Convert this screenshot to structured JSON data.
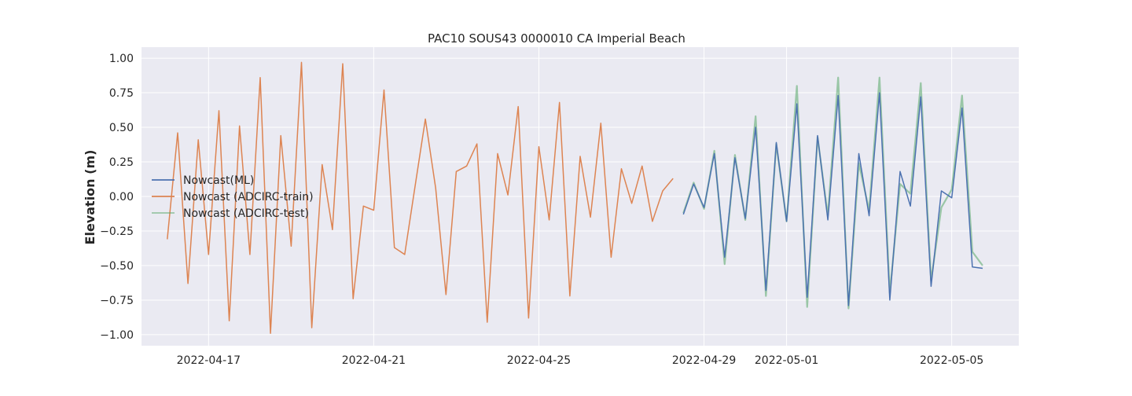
{
  "chart_data": {
    "type": "line",
    "title": "PAC10 SOUS43 0000010 CA Imperial Beach",
    "xlabel": "",
    "ylabel": "Elevation (m)",
    "xlim": [
      "2022-04-15T09:00",
      "2022-05-06T15:00"
    ],
    "ylim": [
      -1.08,
      1.08
    ],
    "x_ticks": [
      "2022-04-17",
      "2022-04-21",
      "2022-04-25",
      "2022-04-29",
      "2022-05-01",
      "2022-05-05"
    ],
    "y_ticks": [
      "1.00",
      "0.75",
      "0.50",
      "0.25",
      "0.00",
      "−0.25",
      "−0.50",
      "−0.75",
      "−1.00"
    ],
    "y_tick_values": [
      1.0,
      0.75,
      0.5,
      0.25,
      0.0,
      -0.25,
      -0.5,
      -0.75,
      -1.0
    ],
    "grid": true,
    "legend_position": "center-left",
    "colors": {
      "background": "#eaeaf2",
      "grid": "#ffffff",
      "ml": "#4c72b0",
      "train": "#dd8452",
      "test": "#55a868"
    },
    "series": [
      {
        "name": "Nowcast (ADCIRC-train)",
        "color": "#dd8452",
        "x": [
          "2022-04-16T00:00",
          "2022-04-16T06:00",
          "2022-04-16T12:00",
          "2022-04-16T18:00",
          "2022-04-17T00:00",
          "2022-04-17T06:00",
          "2022-04-17T12:00",
          "2022-04-17T18:00",
          "2022-04-18T00:00",
          "2022-04-18T06:00",
          "2022-04-18T12:00",
          "2022-04-18T18:00",
          "2022-04-19T00:00",
          "2022-04-19T06:00",
          "2022-04-19T12:00",
          "2022-04-19T18:00",
          "2022-04-20T00:00",
          "2022-04-20T06:00",
          "2022-04-20T12:00",
          "2022-04-20T18:00",
          "2022-04-21T00:00",
          "2022-04-21T06:00",
          "2022-04-21T12:00",
          "2022-04-21T18:00",
          "2022-04-22T00:00",
          "2022-04-22T06:00",
          "2022-04-22T12:00",
          "2022-04-22T18:00",
          "2022-04-23T00:00",
          "2022-04-23T06:00",
          "2022-04-23T12:00",
          "2022-04-23T18:00",
          "2022-04-24T00:00",
          "2022-04-24T06:00",
          "2022-04-24T12:00",
          "2022-04-24T18:00",
          "2022-04-25T00:00",
          "2022-04-25T06:00",
          "2022-04-25T12:00",
          "2022-04-25T18:00",
          "2022-04-26T00:00",
          "2022-04-26T06:00",
          "2022-04-26T12:00",
          "2022-04-26T18:00",
          "2022-04-27T00:00",
          "2022-04-27T06:00",
          "2022-04-27T12:00",
          "2022-04-27T18:00",
          "2022-04-28T00:00",
          "2022-04-28T06:00"
        ],
        "values": [
          -0.31,
          0.46,
          -0.63,
          0.41,
          -0.42,
          0.62,
          -0.9,
          0.51,
          -0.42,
          0.86,
          -0.99,
          0.44,
          -0.36,
          0.97,
          -0.95,
          0.23,
          -0.24,
          0.96,
          -0.74,
          -0.07,
          -0.1,
          0.77,
          -0.37,
          -0.42,
          0.07,
          0.56,
          0.06,
          -0.71,
          0.18,
          0.22,
          0.38,
          -0.91,
          0.31,
          0.01,
          0.65,
          -0.88,
          0.36,
          -0.17,
          0.68,
          -0.72,
          0.29,
          -0.15,
          0.53,
          -0.44,
          0.2,
          -0.05,
          0.22,
          -0.18,
          0.04,
          0.13
        ]
      },
      {
        "name": "Nowcast (ADCIRC-test)",
        "color": "#55a868",
        "x": [
          "2022-04-28T12:00",
          "2022-04-28T18:00",
          "2022-04-29T00:00",
          "2022-04-29T06:00",
          "2022-04-29T12:00",
          "2022-04-29T18:00",
          "2022-04-30T00:00",
          "2022-04-30T06:00",
          "2022-04-30T12:00",
          "2022-04-30T18:00",
          "2022-05-01T00:00",
          "2022-05-01T06:00",
          "2022-05-01T12:00",
          "2022-05-01T18:00",
          "2022-05-02T00:00",
          "2022-05-02T06:00",
          "2022-05-02T12:00",
          "2022-05-02T18:00",
          "2022-05-03T00:00",
          "2022-05-03T06:00",
          "2022-05-03T12:00",
          "2022-05-03T18:00",
          "2022-05-04T00:00",
          "2022-05-04T06:00",
          "2022-05-04T12:00",
          "2022-05-04T18:00",
          "2022-05-05T00:00",
          "2022-05-05T06:00",
          "2022-05-05T12:00",
          "2022-05-05T18:00"
        ],
        "values": [
          -0.12,
          0.1,
          -0.09,
          0.33,
          -0.49,
          0.3,
          -0.17,
          0.58,
          -0.72,
          0.38,
          -0.18,
          0.8,
          -0.8,
          0.43,
          -0.14,
          0.86,
          -0.81,
          0.24,
          -0.1,
          0.86,
          -0.7,
          0.09,
          0.02,
          0.82,
          -0.61,
          -0.08,
          0.05,
          0.73,
          -0.4,
          -0.5
        ]
      },
      {
        "name": "Nowcast(ML)",
        "color": "#4c72b0",
        "x": [
          "2022-04-28T12:00",
          "2022-04-28T18:00",
          "2022-04-29T00:00",
          "2022-04-29T06:00",
          "2022-04-29T12:00",
          "2022-04-29T18:00",
          "2022-04-30T00:00",
          "2022-04-30T06:00",
          "2022-04-30T12:00",
          "2022-04-30T18:00",
          "2022-05-01T00:00",
          "2022-05-01T06:00",
          "2022-05-01T12:00",
          "2022-05-01T18:00",
          "2022-05-02T00:00",
          "2022-05-02T06:00",
          "2022-05-02T12:00",
          "2022-05-02T18:00",
          "2022-05-03T00:00",
          "2022-05-03T06:00",
          "2022-05-03T12:00",
          "2022-05-03T18:00",
          "2022-05-04T00:00",
          "2022-05-04T06:00",
          "2022-05-04T12:00",
          "2022-05-04T18:00",
          "2022-05-05T00:00",
          "2022-05-05T06:00",
          "2022-05-05T12:00",
          "2022-05-05T18:00"
        ],
        "values": [
          -0.13,
          0.09,
          -0.08,
          0.31,
          -0.44,
          0.28,
          -0.16,
          0.5,
          -0.68,
          0.39,
          -0.18,
          0.67,
          -0.73,
          0.44,
          -0.17,
          0.73,
          -0.79,
          0.31,
          -0.14,
          0.75,
          -0.75,
          0.18,
          -0.07,
          0.72,
          -0.65,
          0.04,
          -0.01,
          0.64,
          -0.51,
          -0.52
        ]
      }
    ],
    "legend": [
      "Nowcast(ML)",
      "Nowcast (ADCIRC-train)",
      "Nowcast (ADCIRC-test)"
    ]
  }
}
